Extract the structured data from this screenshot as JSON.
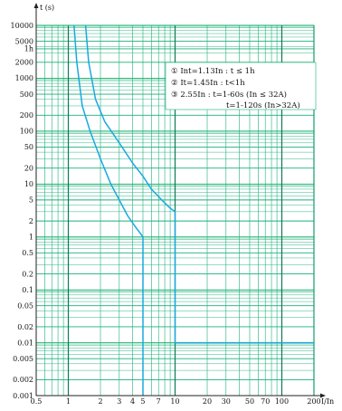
{
  "chart_data": {
    "type": "line",
    "title": "",
    "xlabel": "I/In",
    "ylabel": "t (s)",
    "x_scale": "log",
    "y_scale": "log",
    "xlim": [
      0.5,
      200
    ],
    "ylim": [
      0.001,
      10000
    ],
    "grid": true,
    "x_ticks": [
      {
        "value": 0.5,
        "label": "0.5"
      },
      {
        "value": 1,
        "label": "1"
      },
      {
        "value": 2,
        "label": "2"
      },
      {
        "value": 3,
        "label": "3"
      },
      {
        "value": 4,
        "label": "4"
      },
      {
        "value": 5,
        "label": "5"
      },
      {
        "value": 7,
        "label": "7"
      },
      {
        "value": 10,
        "label": "10"
      },
      {
        "value": 20,
        "label": "20"
      },
      {
        "value": 30,
        "label": "30"
      },
      {
        "value": 50,
        "label": "50"
      },
      {
        "value": 70,
        "label": "70"
      },
      {
        "value": 100,
        "label": "100"
      },
      {
        "value": 200,
        "label": "200"
      }
    ],
    "y_ticks": [
      {
        "value": 10000,
        "label": "10000"
      },
      {
        "value": 5000,
        "label": "5000"
      },
      {
        "value": 3600,
        "label": "1h"
      },
      {
        "value": 2000,
        "label": "2000"
      },
      {
        "value": 1000,
        "label": "1000"
      },
      {
        "value": 500,
        "label": "500"
      },
      {
        "value": 200,
        "label": "200"
      },
      {
        "value": 100,
        "label": "100"
      },
      {
        "value": 50,
        "label": "50"
      },
      {
        "value": 20,
        "label": "20"
      },
      {
        "value": 10,
        "label": "10"
      },
      {
        "value": 5,
        "label": "5"
      },
      {
        "value": 2,
        "label": "2"
      },
      {
        "value": 1,
        "label": "1"
      },
      {
        "value": 0.5,
        "label": "0.5"
      },
      {
        "value": 0.2,
        "label": "0.2"
      },
      {
        "value": 0.1,
        "label": "0.1"
      },
      {
        "value": 0.05,
        "label": "0.05"
      },
      {
        "value": 0.02,
        "label": "0.02"
      },
      {
        "value": 0.01,
        "label": "0.01"
      },
      {
        "value": 0.005,
        "label": "0.005"
      },
      {
        "value": 0.002,
        "label": "0.002"
      },
      {
        "value": 0.001,
        "label": "0.001"
      }
    ],
    "series": [
      {
        "values": [
          [
            1.13,
            10000
          ],
          [
            1.2,
            2000
          ],
          [
            1.35,
            300
          ],
          [
            1.6,
            100
          ],
          [
            2.0,
            30
          ],
          [
            2.5,
            10
          ],
          [
            3.0,
            5
          ],
          [
            3.6,
            2.5
          ],
          [
            4.3,
            1.5
          ],
          [
            5.0,
            1.0
          ],
          [
            5.0,
            0.001
          ]
        ]
      },
      {
        "values": [
          [
            1.45,
            10000
          ],
          [
            1.55,
            2000
          ],
          [
            1.8,
            400
          ],
          [
            2.2,
            150
          ],
          [
            3.0,
            60
          ],
          [
            4.0,
            25
          ],
          [
            5.0,
            14
          ],
          [
            6.0,
            8
          ],
          [
            7.5,
            5
          ],
          [
            9.0,
            3.5
          ],
          [
            10,
            3
          ],
          [
            10,
            0.01
          ],
          [
            200,
            0.01
          ]
        ]
      }
    ],
    "legend": {
      "placement": "top-right",
      "entries": [
        "① Int=1.13In : t ≤ 1h",
        "② It=1.45In : t<1h",
        "③ 2.55In : t=1-60s (In ≤ 32A)",
        "t=1-120s (In>32A)"
      ]
    }
  },
  "colors": {
    "curve": "#1aa8e0",
    "grid": "#1bb07a",
    "band": "#c9ecd9",
    "axis": "#222222",
    "background": "#ffffff"
  }
}
